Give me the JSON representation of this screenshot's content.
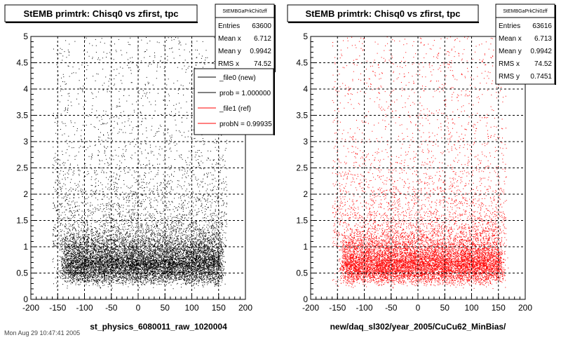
{
  "colors": {
    "new": "#000000",
    "ref": "#ff0000",
    "frame": "#000000",
    "grid": "#000000"
  },
  "footer_text": "Mon Aug 29 10:47:41 2005",
  "chart_data": [
    {
      "type": "scatter",
      "title": "StEMB primtrk: Chisq0 vs zfirst, tpc",
      "xlabel": "st_physics_6080011_raw_1020004",
      "ylabel": "",
      "xlim": [
        -200,
        200
      ],
      "ylim": [
        0,
        5
      ],
      "xticks": [
        "-200",
        "-150",
        "-100",
        "-50",
        "0",
        "50",
        "100",
        "150",
        "200"
      ],
      "yticks": [
        "0",
        "0.5",
        "1",
        "1.5",
        "2",
        "2.5",
        "3",
        "3.5",
        "4",
        "4.5",
        "5"
      ],
      "grid": true,
      "color": "#000000",
      "stats": {
        "name": "StEMBGaPrkChi0zff",
        "rows": [
          {
            "label": "Entries",
            "value": "63600"
          },
          {
            "label": "Mean x",
            "value": "6.712"
          },
          {
            "label": "Mean y",
            "value": "0.9942"
          },
          {
            "label": "RMS x",
            "value": "74.52"
          }
        ]
      },
      "legend": {
        "placement": "top-right",
        "entries": [
          {
            "label": "_file0 (new)",
            "color": "#000000"
          },
          {
            "label": "prob = 1.000000",
            "color": "#000000"
          },
          {
            "label": "_file1 (ref)",
            "color": "#ff0000"
          },
          {
            "label": "probN = 0.99935",
            "color": "#ff0000"
          }
        ]
      },
      "density": {
        "x_core": [
          -140,
          155
        ],
        "y_core": [
          0.25,
          1.0
        ],
        "x_spread": [
          -160,
          165
        ],
        "y_spread": [
          0,
          5
        ],
        "entries": 63600
      }
    },
    {
      "type": "scatter",
      "title": "StEMB primtrk: Chisq0 vs zfirst, tpc",
      "xlabel": "new/daq_sl302/year_2005/CuCu62_MinBias/",
      "ylabel": "",
      "xlim": [
        -200,
        200
      ],
      "ylim": [
        0,
        5
      ],
      "xticks": [
        "-200",
        "-150",
        "-100",
        "-50",
        "0",
        "50",
        "100",
        "150",
        "200"
      ],
      "yticks": [
        "0",
        "0.5",
        "1",
        "1.5",
        "2",
        "2.5",
        "3",
        "3.5",
        "4",
        "4.5",
        "5"
      ],
      "grid": true,
      "color": "#ff0000",
      "stats": {
        "name": "StEMBGaPrkChi0zff",
        "rows": [
          {
            "label": "Entries",
            "value": "63616"
          },
          {
            "label": "Mean x",
            "value": "6.713"
          },
          {
            "label": "Mean y",
            "value": "0.9942"
          },
          {
            "label": "RMS x",
            "value": "74.52"
          },
          {
            "label": "RMS y",
            "value": "0.7451"
          }
        ]
      },
      "density": {
        "x_core": [
          -140,
          155
        ],
        "y_core": [
          0.25,
          1.0
        ],
        "x_spread": [
          -160,
          165
        ],
        "y_spread": [
          0,
          5
        ],
        "entries": 63616
      }
    }
  ]
}
